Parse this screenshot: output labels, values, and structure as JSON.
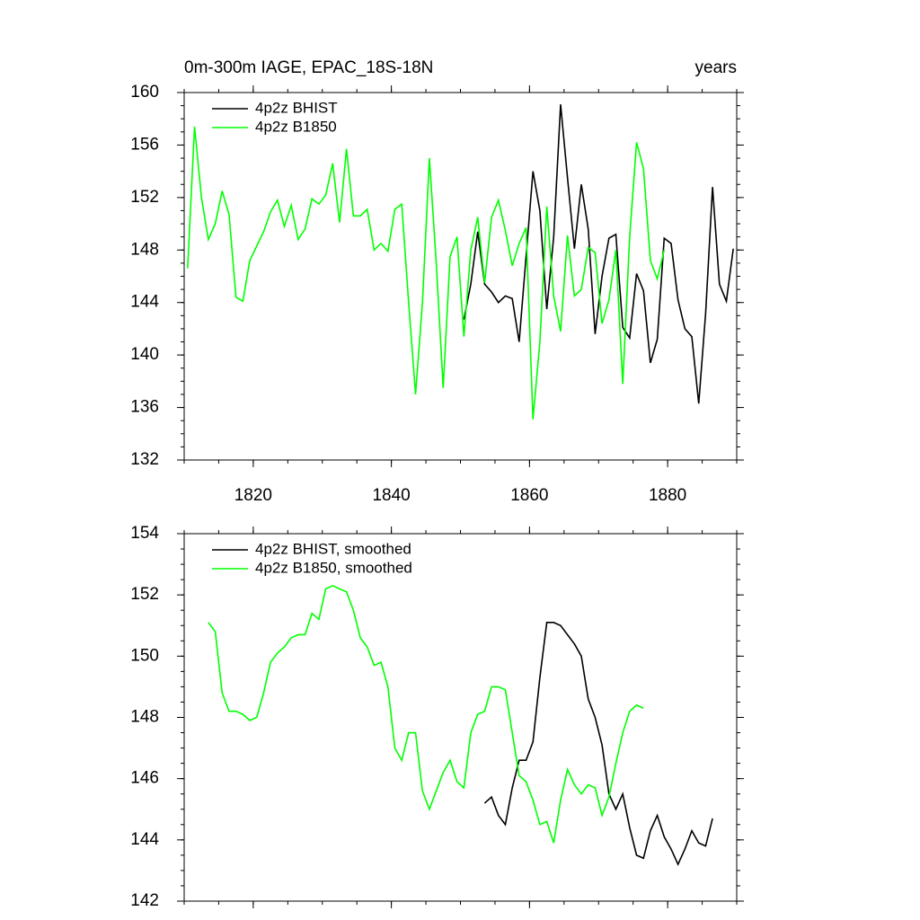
{
  "chart_data": [
    {
      "type": "line",
      "title": "0m-300m IAGE, EPAC_18S-18N",
      "right_title": "years",
      "xlim": [
        1810,
        1890
      ],
      "xticks": [
        1820,
        1840,
        1860,
        1880
      ],
      "show_xtick_labels": true,
      "ylim": [
        132,
        160
      ],
      "yticks": [
        132,
        136,
        140,
        144,
        148,
        152,
        156,
        160
      ],
      "legend": "upper left",
      "series": [
        {
          "name": "4p2z BHIST",
          "color": "#000000",
          "x": [
            1850.5,
            1851.5,
            1852.5,
            1853.5,
            1854.5,
            1855.5,
            1856.5,
            1857.5,
            1858.5,
            1859.5,
            1860.5,
            1861.5,
            1862.5,
            1863.5,
            1864.5,
            1865.5,
            1866.5,
            1867.5,
            1868.5,
            1869.5,
            1870.5,
            1871.5,
            1872.5,
            1873.5,
            1874.5,
            1875.5,
            1876.5,
            1877.5,
            1878.5,
            1879.5,
            1880.5,
            1881.5,
            1882.5,
            1883.5,
            1884.5,
            1885.5,
            1886.5,
            1887.5,
            1888.5,
            1889.5
          ],
          "values": [
            142.7,
            145.4,
            149.4,
            145.4,
            144.8,
            144,
            144.5,
            144.3,
            141,
            147.5,
            154,
            151,
            143.5,
            149,
            159.1,
            153.5,
            148.1,
            153,
            149.6,
            141.6,
            146,
            148.9,
            149.2,
            142.1,
            141.3,
            146.2,
            144.9,
            139.4,
            141.2,
            148.9,
            148.5,
            144.2,
            142,
            141.4,
            136.3,
            143.2,
            152.8,
            145.4,
            144.1,
            148.1
          ]
        },
        {
          "name": "4p2z B1850",
          "color": "#00ff00",
          "x": [
            1810.5,
            1811.5,
            1812.5,
            1813.5,
            1814.5,
            1815.5,
            1816.5,
            1817.5,
            1818.5,
            1819.5,
            1820.5,
            1821.5,
            1822.5,
            1823.5,
            1824.5,
            1825.5,
            1826.5,
            1827.5,
            1828.5,
            1829.5,
            1830.5,
            1831.5,
            1832.5,
            1833.5,
            1834.5,
            1835.5,
            1836.5,
            1837.5,
            1838.5,
            1839.5,
            1840.5,
            1841.5,
            1842.5,
            1843.5,
            1844.5,
            1845.5,
            1846.5,
            1847.5,
            1848.5,
            1849.5,
            1850.5,
            1851.5,
            1852.5,
            1853.5,
            1854.5,
            1855.5,
            1856.5,
            1857.5,
            1858.5,
            1859.5,
            1860.5,
            1861.5,
            1862.5,
            1863.5,
            1864.5,
            1865.5,
            1866.5,
            1867.5,
            1868.5,
            1869.5,
            1870.5,
            1871.5,
            1872.5,
            1873.5,
            1874.5,
            1875.5,
            1876.5,
            1877.5,
            1878.5,
            1879.5
          ],
          "values": [
            146.6,
            157.4,
            152,
            148.8,
            150,
            152.5,
            150.7,
            144.4,
            144.1,
            147.2,
            148.3,
            149.4,
            150.9,
            151.8,
            149.8,
            151.4,
            148.8,
            149.6,
            151.9,
            151.5,
            152.2,
            154.6,
            150.1,
            155.7,
            150.6,
            150.6,
            151.1,
            148,
            148.5,
            147.9,
            151.1,
            151.5,
            144,
            137,
            144,
            155,
            147,
            137.5,
            147.5,
            149,
            141.4,
            148,
            150.5,
            145.5,
            150.5,
            151.8,
            149.5,
            146.8,
            148.5,
            149.7,
            135.1,
            141,
            151.3,
            144.5,
            141.8,
            149.1,
            144.5,
            145,
            148.2,
            147.8,
            142.4,
            144.2,
            148,
            137.8,
            149,
            156.2,
            154.2,
            147.2,
            145.8,
            148
          ]
        }
      ]
    },
    {
      "type": "line",
      "xlim": [
        1810,
        1890
      ],
      "xticks": [
        1820,
        1840,
        1860,
        1880
      ],
      "show_xtick_labels": false,
      "ylim": [
        142,
        154
      ],
      "yticks": [
        142,
        144,
        146,
        148,
        150,
        152,
        154
      ],
      "legend": "upper left",
      "series": [
        {
          "name": "4p2z BHIST, smoothed",
          "color": "#000000",
          "x": [
            1853.5,
            1854.5,
            1855.5,
            1856.5,
            1857.5,
            1858.5,
            1859.5,
            1860.5,
            1861.5,
            1862.5,
            1863.5,
            1864.5,
            1865.5,
            1866.5,
            1867.5,
            1868.5,
            1869.5,
            1870.5,
            1871.5,
            1872.5,
            1873.5,
            1874.5,
            1875.5,
            1876.5,
            1877.5,
            1878.5,
            1879.5,
            1880.5,
            1881.5,
            1882.5,
            1883.5,
            1884.5,
            1885.5,
            1886.5
          ],
          "values": [
            145.2,
            145.4,
            144.8,
            144.5,
            145.7,
            146.6,
            146.6,
            147.2,
            149.3,
            151.1,
            151.1,
            151,
            150.7,
            150.4,
            150,
            148.6,
            148,
            147.1,
            145.5,
            145,
            145.5,
            144.4,
            143.5,
            143.4,
            144.3,
            144.8,
            144.1,
            143.7,
            143.2,
            143.7,
            144.3,
            143.9,
            143.8,
            144.7
          ]
        },
        {
          "name": "4p2z B1850, smoothed",
          "color": "#00ff00",
          "x": [
            1813.5,
            1814.5,
            1815.5,
            1816.5,
            1817.5,
            1818.5,
            1819.5,
            1820.5,
            1821.5,
            1822.5,
            1823.5,
            1824.5,
            1825.5,
            1826.5,
            1827.5,
            1828.5,
            1829.5,
            1830.5,
            1831.5,
            1832.5,
            1833.5,
            1834.5,
            1835.5,
            1836.5,
            1837.5,
            1838.5,
            1839.5,
            1840.5,
            1841.5,
            1842.5,
            1843.5,
            1844.5,
            1845.5,
            1846.5,
            1847.5,
            1848.5,
            1849.5,
            1850.5,
            1851.5,
            1852.5,
            1853.5,
            1854.5,
            1855.5,
            1856.5,
            1857.5,
            1858.5,
            1859.5,
            1860.5,
            1861.5,
            1862.5,
            1863.5,
            1864.5,
            1865.5,
            1866.5,
            1867.5,
            1868.5,
            1869.5,
            1870.5,
            1871.5,
            1872.5,
            1873.5,
            1874.5,
            1875.5,
            1876.5
          ],
          "values": [
            151.1,
            150.8,
            148.8,
            148.2,
            148.2,
            148.1,
            147.9,
            148,
            148.8,
            149.8,
            150.1,
            150.3,
            150.6,
            150.7,
            150.7,
            151.4,
            151.2,
            152.2,
            152.3,
            152.2,
            152.1,
            151.5,
            150.6,
            150.3,
            149.7,
            149.8,
            149,
            147,
            146.6,
            147.5,
            147.5,
            145.6,
            145,
            145.6,
            146.2,
            146.6,
            145.9,
            145.7,
            147.5,
            148.1,
            148.2,
            149,
            149,
            148.9,
            147.5,
            146.1,
            145.9,
            145.3,
            144.5,
            144.6,
            143.9,
            145.3,
            146.3,
            145.8,
            145.5,
            145.8,
            145.7,
            144.8,
            145.4,
            146.5,
            147.5,
            148.2,
            148.4,
            148.3
          ]
        }
      ]
    }
  ]
}
